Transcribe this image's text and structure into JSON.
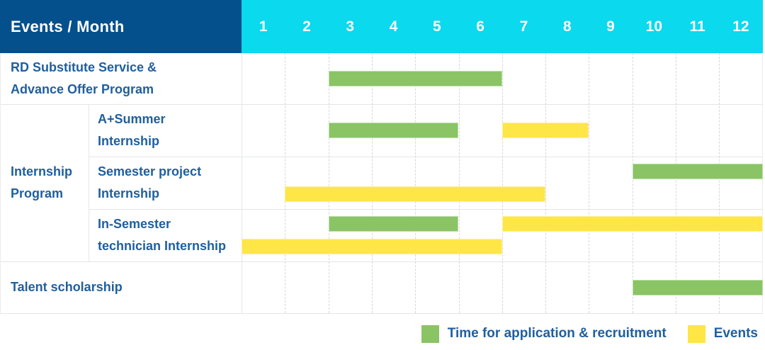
{
  "colors": {
    "header_navy": "#03508d",
    "header_cyan": "#0ad9ee",
    "application_green": "#8ac465",
    "events_yellow": "#fde646",
    "label_blue": "#1f5f9e",
    "grid_solid": "#e4e6e7",
    "grid_dashed": "#d7d7d7",
    "outer_border": "#ededed"
  },
  "chart_data": {
    "type": "gantt",
    "title": "Events / Month",
    "x_axis_label": "Month",
    "months": [
      "1",
      "2",
      "3",
      "4",
      "5",
      "6",
      "7",
      "8",
      "9",
      "10",
      "11",
      "12"
    ],
    "group_label": "Internship Program",
    "rows": [
      {
        "label": "RD Substitute Service &\nAdvance Offer Program",
        "grouped": false,
        "bars": [
          {
            "series": "application",
            "start_month": 3,
            "end_month": 6,
            "line": "center"
          }
        ]
      },
      {
        "label": "A+Summer\nInternship",
        "grouped": true,
        "bars": [
          {
            "series": "application",
            "start_month": 3,
            "end_month": 5,
            "line": "center"
          },
          {
            "series": "events",
            "start_month": 7,
            "end_month": 8,
            "line": "center"
          }
        ]
      },
      {
        "label": "Semester project\nInternship",
        "grouped": true,
        "bars": [
          {
            "series": "application",
            "start_month": 10,
            "end_month": 12,
            "line": "top"
          },
          {
            "series": "events",
            "start_month": 2,
            "end_month": 7,
            "line": "bottom"
          }
        ]
      },
      {
        "label": "In-Semester\ntechnician Internship",
        "grouped": true,
        "bars": [
          {
            "series": "application",
            "start_month": 3,
            "end_month": 5,
            "line": "top"
          },
          {
            "series": "events",
            "start_month": 7,
            "end_month": 12,
            "line": "top"
          },
          {
            "series": "events",
            "start_month": 1,
            "end_month": 6,
            "line": "bottom"
          }
        ]
      },
      {
        "label": "Talent scholarship",
        "grouped": false,
        "bars": [
          {
            "series": "application",
            "start_month": 10,
            "end_month": 12,
            "line": "center"
          }
        ]
      }
    ],
    "legend": [
      {
        "series": "application",
        "label": "Time for application & recruitment"
      },
      {
        "series": "events",
        "label": "Events"
      }
    ],
    "legend_position": "bottom-right",
    "grid": true
  }
}
